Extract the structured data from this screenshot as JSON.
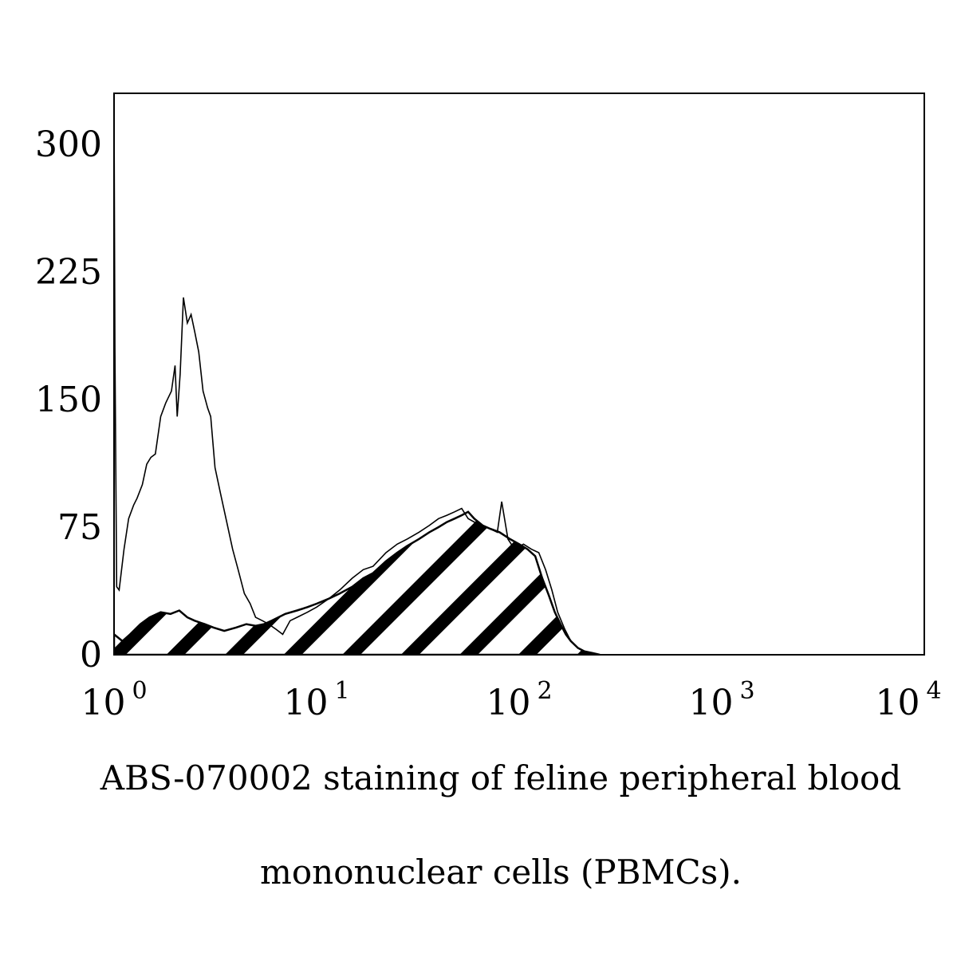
{
  "chart_data": {
    "type": "area",
    "title": "",
    "xlabel": "",
    "ylabel": "",
    "x_scale": "log",
    "xlim": [
      1,
      10000
    ],
    "ylim": [
      0,
      330
    ],
    "y_ticks": [
      {
        "value": 0,
        "label": "0"
      },
      {
        "value": 75,
        "label": "75"
      },
      {
        "value": 150,
        "label": "150"
      },
      {
        "value": 225,
        "label": "225"
      },
      {
        "value": 300,
        "label": "300"
      }
    ],
    "x_ticks": [
      {
        "value": 1,
        "base": "10",
        "exp": "0"
      },
      {
        "value": 10,
        "base": "10",
        "exp": "1"
      },
      {
        "value": 100,
        "base": "10",
        "exp": "2"
      },
      {
        "value": 1000,
        "base": "10",
        "exp": "3"
      },
      {
        "value": 10000,
        "base": "10",
        "exp": "4"
      }
    ],
    "grid": false,
    "legend": "none",
    "series": [
      {
        "style": "outline",
        "color": "#000000",
        "points": [
          [
            1.0,
            325
          ],
          [
            1.01,
            180
          ],
          [
            1.03,
            40
          ],
          [
            1.06,
            38
          ],
          [
            1.12,
            62
          ],
          [
            1.18,
            80
          ],
          [
            1.25,
            88
          ],
          [
            1.3,
            92
          ],
          [
            1.38,
            100
          ],
          [
            1.45,
            112
          ],
          [
            1.52,
            116
          ],
          [
            1.6,
            118
          ],
          [
            1.7,
            140
          ],
          [
            1.8,
            148
          ],
          [
            1.92,
            155
          ],
          [
            2.0,
            170
          ],
          [
            2.05,
            140
          ],
          [
            2.12,
            165
          ],
          [
            2.2,
            210
          ],
          [
            2.3,
            195
          ],
          [
            2.4,
            200
          ],
          [
            2.5,
            190
          ],
          [
            2.62,
            178
          ],
          [
            2.75,
            155
          ],
          [
            2.9,
            145
          ],
          [
            3.0,
            140
          ],
          [
            3.15,
            110
          ],
          [
            3.35,
            95
          ],
          [
            3.6,
            78
          ],
          [
            3.85,
            62
          ],
          [
            4.1,
            50
          ],
          [
            4.4,
            36
          ],
          [
            4.7,
            30
          ],
          [
            5.0,
            22
          ],
          [
            5.4,
            20
          ],
          [
            5.8,
            18
          ],
          [
            6.3,
            15
          ],
          [
            6.8,
            12
          ],
          [
            7.4,
            20
          ],
          [
            8.0,
            22
          ],
          [
            9.0,
            25
          ],
          [
            10.0,
            28
          ],
          [
            11.5,
            33
          ],
          [
            13.0,
            38
          ],
          [
            15.0,
            45
          ],
          [
            17.0,
            50
          ],
          [
            19.0,
            52
          ],
          [
            22.0,
            60
          ],
          [
            25.0,
            65
          ],
          [
            28.0,
            68
          ],
          [
            32.0,
            72
          ],
          [
            36.0,
            76
          ],
          [
            40.0,
            80
          ],
          [
            44.0,
            82
          ],
          [
            48.0,
            84
          ],
          [
            52.0,
            86
          ],
          [
            56.0,
            80
          ],
          [
            60.0,
            78
          ],
          [
            66.0,
            76
          ],
          [
            72.0,
            74
          ],
          [
            78.0,
            72
          ],
          [
            82.0,
            90
          ],
          [
            88.0,
            68
          ],
          [
            95.0,
            62
          ],
          [
            105.0,
            65
          ],
          [
            115.0,
            62
          ],
          [
            125.0,
            60
          ],
          [
            135.0,
            50
          ],
          [
            145.0,
            38
          ],
          [
            155.0,
            25
          ],
          [
            168.0,
            15
          ],
          [
            180.0,
            8
          ],
          [
            195.0,
            4
          ],
          [
            210.0,
            2
          ],
          [
            230.0,
            1
          ],
          [
            250.0,
            0
          ],
          [
            10000.0,
            0
          ]
        ]
      },
      {
        "style": "hatched",
        "color": "#000000",
        "points": [
          [
            1.0,
            12
          ],
          [
            1.1,
            8
          ],
          [
            1.2,
            12
          ],
          [
            1.35,
            18
          ],
          [
            1.5,
            22
          ],
          [
            1.7,
            25
          ],
          [
            1.9,
            24
          ],
          [
            2.1,
            26
          ],
          [
            2.3,
            22
          ],
          [
            2.5,
            20
          ],
          [
            2.8,
            18
          ],
          [
            3.1,
            16
          ],
          [
            3.5,
            14
          ],
          [
            4.0,
            16
          ],
          [
            4.5,
            18
          ],
          [
            5.0,
            17
          ],
          [
            5.5,
            18
          ],
          [
            6.0,
            20
          ],
          [
            7.0,
            24
          ],
          [
            8.0,
            26
          ],
          [
            9.0,
            28
          ],
          [
            10.0,
            30
          ],
          [
            11.5,
            33
          ],
          [
            13.0,
            36
          ],
          [
            15.0,
            40
          ],
          [
            17.0,
            45
          ],
          [
            19.0,
            48
          ],
          [
            22.0,
            55
          ],
          [
            25.0,
            60
          ],
          [
            28.0,
            64
          ],
          [
            32.0,
            68
          ],
          [
            36.0,
            72
          ],
          [
            40.0,
            75
          ],
          [
            44.0,
            78
          ],
          [
            48.0,
            80
          ],
          [
            52.0,
            82
          ],
          [
            56.0,
            84
          ],
          [
            60.0,
            80
          ],
          [
            66.0,
            76
          ],
          [
            72.0,
            74
          ],
          [
            80.0,
            72
          ],
          [
            90.0,
            68
          ],
          [
            100.0,
            65
          ],
          [
            110.0,
            62
          ],
          [
            120.0,
            58
          ],
          [
            130.0,
            45
          ],
          [
            140.0,
            35
          ],
          [
            150.0,
            25
          ],
          [
            160.0,
            18
          ],
          [
            170.0,
            12
          ],
          [
            180.0,
            8
          ],
          [
            195.0,
            4
          ],
          [
            210.0,
            2
          ],
          [
            230.0,
            1
          ],
          [
            250.0,
            0
          ]
        ]
      }
    ]
  },
  "caption": {
    "line1": "ABS-070002 staining of feline peripheral blood",
    "line2": "mononuclear cells (PBMCs)."
  }
}
